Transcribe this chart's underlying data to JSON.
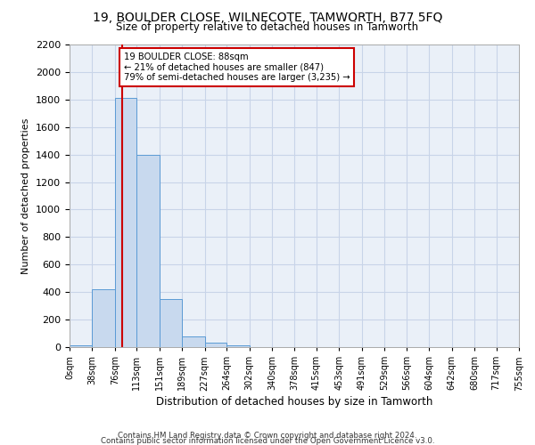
{
  "title": "19, BOULDER CLOSE, WILNECOTE, TAMWORTH, B77 5FQ",
  "subtitle": "Size of property relative to detached houses in Tamworth",
  "xlabel": "Distribution of detached houses by size in Tamworth",
  "ylabel": "Number of detached properties",
  "bar_edges": [
    0,
    38,
    76,
    113,
    151,
    189,
    227,
    264,
    302,
    340,
    378,
    415,
    453,
    491,
    529,
    566,
    604,
    642,
    680,
    717,
    755
  ],
  "bar_heights": [
    15,
    420,
    1810,
    1400,
    350,
    80,
    30,
    15,
    0,
    0,
    0,
    0,
    0,
    0,
    0,
    0,
    0,
    0,
    0,
    0
  ],
  "bar_color": "#c8d9ee",
  "bar_edgecolor": "#5b9bd5",
  "vline_x": 88,
  "vline_color": "#cc0000",
  "annotation_text": "19 BOULDER CLOSE: 88sqm\n← 21% of detached houses are smaller (847)\n79% of semi-detached houses are larger (3,235) →",
  "annotation_box_color": "#ffffff",
  "annotation_box_edgecolor": "#cc0000",
  "ylim": [
    0,
    2200
  ],
  "yticks": [
    0,
    200,
    400,
    600,
    800,
    1000,
    1200,
    1400,
    1600,
    1800,
    2000,
    2200
  ],
  "tick_labels": [
    "0sqm",
    "38sqm",
    "76sqm",
    "113sqm",
    "151sqm",
    "189sqm",
    "227sqm",
    "264sqm",
    "302sqm",
    "340sqm",
    "378sqm",
    "415sqm",
    "453sqm",
    "491sqm",
    "529sqm",
    "566sqm",
    "604sqm",
    "642sqm",
    "680sqm",
    "717sqm",
    "755sqm"
  ],
  "grid_color": "#c8d4e8",
  "bg_color": "#eaf0f8",
  "footer_line1": "Contains HM Land Registry data © Crown copyright and database right 2024.",
  "footer_line2": "Contains public sector information licensed under the Open Government Licence v3.0."
}
